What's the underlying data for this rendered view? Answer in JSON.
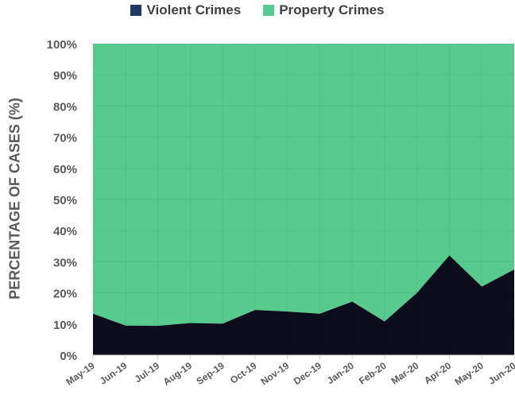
{
  "chart_data": {
    "type": "area",
    "stacked": true,
    "normalized": true,
    "categories": [
      "May-19",
      "Jun-19",
      "Jul-19",
      "Aug-19",
      "Sep-19",
      "Oct-19",
      "Nov-19",
      "Dec-19",
      "Jan-20",
      "Feb-20",
      "Mar-20",
      "Apr-20",
      "May-20",
      "Jun-20"
    ],
    "series": [
      {
        "name": "Violent Crimes",
        "color": "#0b0d1c",
        "values": [
          13.3,
          9.5,
          9.4,
          10.3,
          10.1,
          14.5,
          14.0,
          13.3,
          17.2,
          10.8,
          20.0,
          32.0,
          22.0,
          27.5
        ]
      },
      {
        "name": "Property Crimes",
        "color": "#57cb8e",
        "values": [
          86.7,
          90.5,
          90.6,
          89.7,
          89.9,
          85.5,
          86.0,
          86.7,
          82.8,
          89.2,
          80.0,
          68.0,
          78.0,
          72.5
        ]
      }
    ],
    "yticks": [
      "0%",
      "10%",
      "20%",
      "30%",
      "40%",
      "50%",
      "60%",
      "70%",
      "80%",
      "90%",
      "100%"
    ],
    "ylim": [
      0,
      100
    ],
    "xlabel": "",
    "ylabel": "PERCENTAGE OF CASES (%)",
    "legend_position": "top-center",
    "grid": true
  }
}
